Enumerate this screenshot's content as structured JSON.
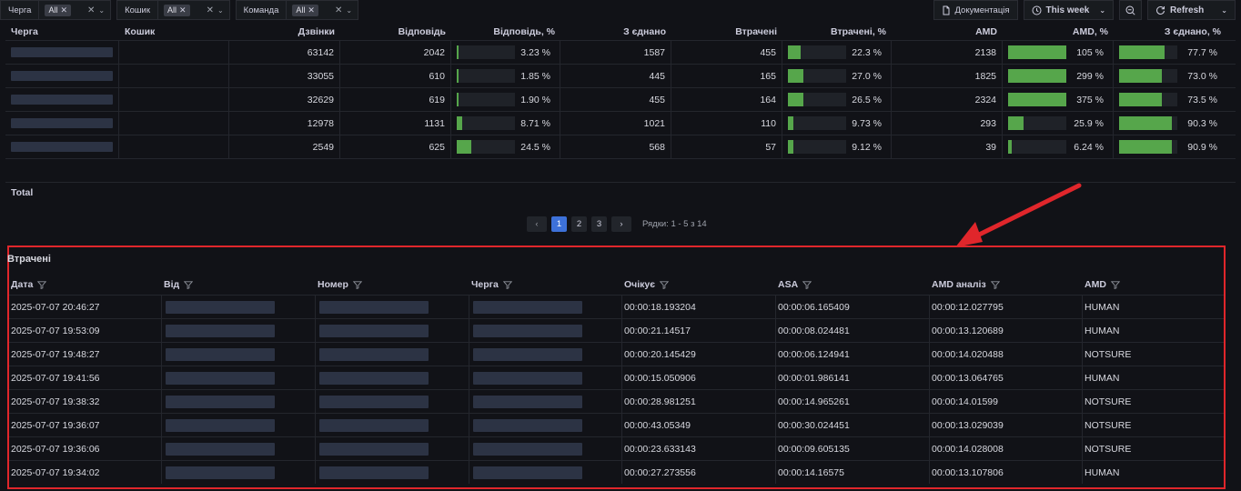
{
  "filters": [
    {
      "label": "Черга",
      "value": "All"
    },
    {
      "label": "Кошик",
      "value": "All"
    },
    {
      "label": "Команда",
      "value": "All"
    }
  ],
  "toolbar": {
    "docs_label": "Документація",
    "time_range": "This week",
    "refresh_label": "Refresh"
  },
  "top_table": {
    "columns": [
      "Черга",
      "Кошик",
      "Дзвінки",
      "Відповідь",
      "Відповідь, %",
      "З єднано",
      "Втрачені",
      "Втрачені, %",
      "AMD",
      "AMD, %",
      "З єднано, %"
    ],
    "rows": [
      {
        "calls": "63142",
        "answer": "2042",
        "answer_pct": "3.23 %",
        "answer_frac": 0.0323,
        "connected": "1587",
        "lost": "455",
        "lost_pct": "22.3 %",
        "lost_frac": 0.223,
        "amd": "2138",
        "amd_pct": "105 %",
        "amd_frac": 1.0,
        "conn_pct": "77.7 %",
        "conn_frac": 0.777
      },
      {
        "calls": "33055",
        "answer": "610",
        "answer_pct": "1.85 %",
        "answer_frac": 0.0185,
        "connected": "445",
        "lost": "165",
        "lost_pct": "27.0 %",
        "lost_frac": 0.27,
        "amd": "1825",
        "amd_pct": "299 %",
        "amd_frac": 1.0,
        "conn_pct": "73.0 %",
        "conn_frac": 0.73
      },
      {
        "calls": "32629",
        "answer": "619",
        "answer_pct": "1.90 %",
        "answer_frac": 0.019,
        "connected": "455",
        "lost": "164",
        "lost_pct": "26.5 %",
        "lost_frac": 0.265,
        "amd": "2324",
        "amd_pct": "375 %",
        "amd_frac": 1.0,
        "conn_pct": "73.5 %",
        "conn_frac": 0.735
      },
      {
        "calls": "12978",
        "answer": "1131",
        "answer_pct": "8.71 %",
        "answer_frac": 0.0871,
        "connected": "1021",
        "lost": "110",
        "lost_pct": "9.73 %",
        "lost_frac": 0.0973,
        "amd": "293",
        "amd_pct": "25.9 %",
        "amd_frac": 0.259,
        "conn_pct": "90.3 %",
        "conn_frac": 0.903
      },
      {
        "calls": "2549",
        "answer": "625",
        "answer_pct": "24.5 %",
        "answer_frac": 0.245,
        "connected": "568",
        "lost": "57",
        "lost_pct": "9.12 %",
        "lost_frac": 0.0912,
        "amd": "39",
        "amd_pct": "6.24 %",
        "amd_frac": 0.0624,
        "conn_pct": "90.9 %",
        "conn_frac": 0.909
      }
    ],
    "total_label": "Total"
  },
  "pagination": {
    "pages": [
      "1",
      "2",
      "3"
    ],
    "current": "1",
    "info": "Рядки: 1 - 5 з 14"
  },
  "lost_panel": {
    "title": "Втрачені",
    "columns": [
      "Дата",
      "Від",
      "Номер",
      "Черга",
      "Очікує",
      "ASA",
      "AMD аналіз",
      "AMD"
    ],
    "rows": [
      {
        "date": "2025-07-07 20:46:27",
        "wait": "00:00:18.193204",
        "asa": "00:00:06.165409",
        "amd_analysis": "00:00:12.027795",
        "amd": "HUMAN"
      },
      {
        "date": "2025-07-07 19:53:09",
        "wait": "00:00:21.14517",
        "asa": "00:00:08.024481",
        "amd_analysis": "00:00:13.120689",
        "amd": "HUMAN"
      },
      {
        "date": "2025-07-07 19:48:27",
        "wait": "00:00:20.145429",
        "asa": "00:00:06.124941",
        "amd_analysis": "00:00:14.020488",
        "amd": "NOTSURE"
      },
      {
        "date": "2025-07-07 19:41:56",
        "wait": "00:00:15.050906",
        "asa": "00:00:01.986141",
        "amd_analysis": "00:00:13.064765",
        "amd": "HUMAN"
      },
      {
        "date": "2025-07-07 19:38:32",
        "wait": "00:00:28.981251",
        "asa": "00:00:14.965261",
        "amd_analysis": "00:00:14.01599",
        "amd": "NOTSURE"
      },
      {
        "date": "2025-07-07 19:36:07",
        "wait": "00:00:43.05349",
        "asa": "00:00:30.024451",
        "amd_analysis": "00:00:13.029039",
        "amd": "NOTSURE"
      },
      {
        "date": "2025-07-07 19:36:06",
        "wait": "00:00:23.633143",
        "asa": "00:00:09.605135",
        "amd_analysis": "00:00:14.028008",
        "amd": "NOTSURE"
      },
      {
        "date": "2025-07-07 19:34:02",
        "wait": "00:00:27.273556",
        "asa": "00:00:14.16575",
        "amd_analysis": "00:00:13.107806",
        "amd": "HUMAN"
      }
    ]
  },
  "colors": {
    "background": "#111217",
    "gauge_green": "#56a64b",
    "highlight_red": "#e0262b",
    "page_active": "#3d71d9"
  }
}
